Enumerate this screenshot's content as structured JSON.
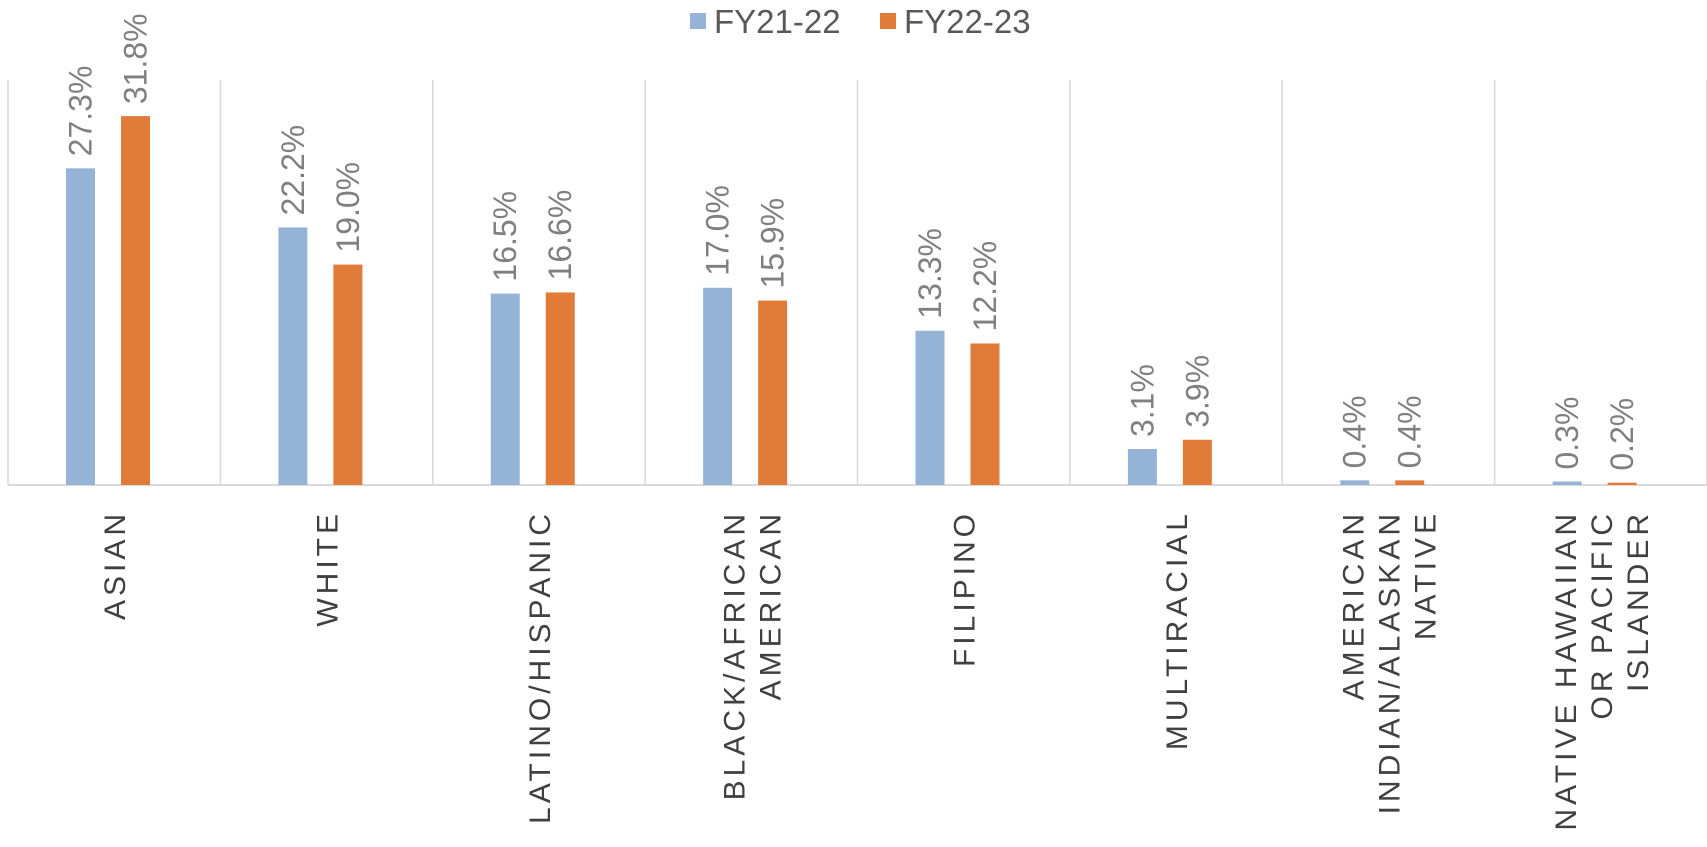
{
  "chart_data": {
    "type": "bar",
    "categories": [
      [
        "ASIAN"
      ],
      [
        "WHITE"
      ],
      [
        "LATINO/HISPANIC"
      ],
      [
        "BLACK/AFRICAN",
        "AMERICAN"
      ],
      [
        "FILIPINO"
      ],
      [
        "MULTIRACIAL"
      ],
      [
        "AMERICAN",
        "INDIAN/ALASKAN",
        "NATIVE"
      ],
      [
        "NATIVE HAWAIIAN",
        "OR PACIFIC",
        "ISLANDER"
      ]
    ],
    "series": [
      {
        "name": "FY21-22",
        "color": "#95b3d7",
        "values": [
          27.3,
          22.2,
          16.5,
          17.0,
          13.3,
          3.1,
          0.4,
          0.3
        ],
        "labels": [
          "27.3%",
          "22.2%",
          "16.5%",
          "17.0%",
          "13.3%",
          "3.1%",
          "0.4%",
          "0.3%"
        ]
      },
      {
        "name": "FY22-23",
        "color": "#e07b39",
        "values": [
          31.8,
          19.0,
          16.6,
          15.9,
          12.2,
          3.9,
          0.4,
          0.2
        ],
        "labels": [
          "31.8%",
          "19.0%",
          "16.6%",
          "15.9%",
          "12.2%",
          "3.9%",
          "0.4%",
          "0.2%"
        ]
      }
    ],
    "title": "",
    "xlabel": "",
    "ylabel": "",
    "ylim": [
      0,
      35
    ],
    "grid": "vertical separators",
    "legend": "top-center"
  }
}
